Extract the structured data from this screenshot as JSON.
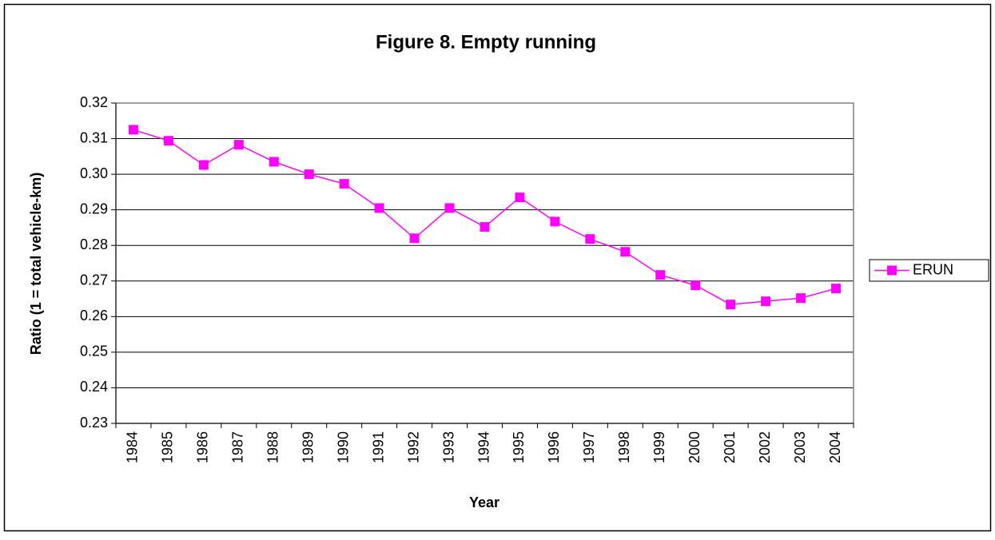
{
  "chart_data": {
    "type": "line",
    "title": "Figure 8. Empty running",
    "x_label": "Year",
    "y_label": "Ratio (1 = total vehicle-km)",
    "categories": [
      "1984",
      "1985",
      "1986",
      "1987",
      "1988",
      "1989",
      "1990",
      "1991",
      "1992",
      "1993",
      "1994",
      "1995",
      "1996",
      "1997",
      "1998",
      "1999",
      "2000",
      "2001",
      "2002",
      "2003",
      "2004"
    ],
    "series": [
      {
        "name": "ERUN",
        "color": "#ff00ff",
        "marker": "square",
        "values": [
          0.3125,
          0.3094,
          0.3026,
          0.3083,
          0.3035,
          0.3,
          0.2973,
          0.2905,
          0.282,
          0.2905,
          0.2852,
          0.2935,
          0.2867,
          0.2818,
          0.2782,
          0.2717,
          0.2688,
          0.2634,
          0.2643,
          0.2652,
          0.2679
        ]
      }
    ],
    "ylim": [
      0.23,
      0.32
    ],
    "yticks": [
      0.23,
      0.24,
      0.25,
      0.26,
      0.27,
      0.28,
      0.29,
      {
        "value": 0.3,
        "label": "0.30"
      },
      0.31,
      0.32
    ],
    "grid": true,
    "legend": "right"
  }
}
